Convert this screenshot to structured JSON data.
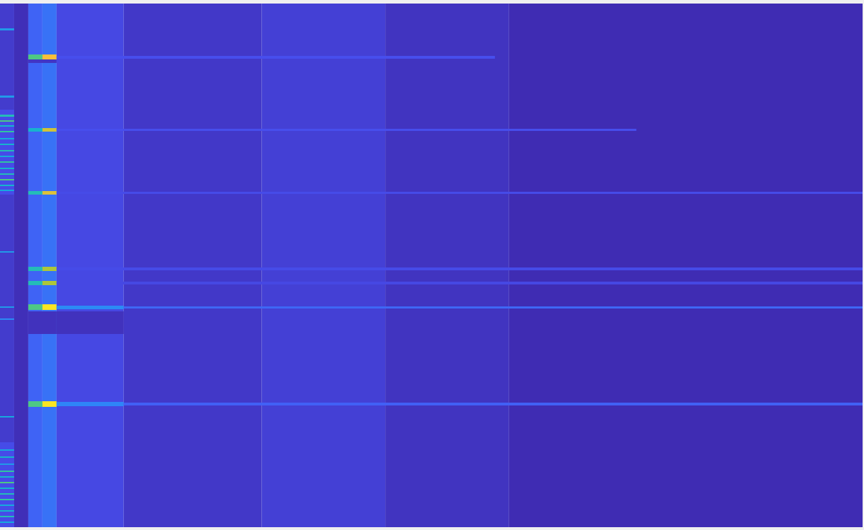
{
  "chart_data": {
    "type": "heatmap",
    "xlim": [
      0,
      1220
    ],
    "ylim": [
      0,
      740
    ],
    "tick_labels": false,
    "color_range": [
      0,
      1
    ],
    "cells": [
      [
        0,
        20,
        0,
        740,
        0.07
      ],
      [
        20,
        40,
        0,
        740,
        0.03
      ],
      [
        40,
        60,
        0,
        740,
        0.19
      ],
      [
        60,
        80,
        0,
        740,
        0.23
      ],
      [
        80,
        175,
        0,
        740,
        0.11
      ],
      [
        175,
        370,
        0,
        740,
        0.06
      ],
      [
        370,
        545,
        0,
        740,
        0.085
      ],
      [
        545,
        720,
        0,
        740,
        0.045
      ],
      [
        720,
        1220,
        0,
        740,
        0.02
      ],
      [
        0,
        20,
        150,
        270,
        0.12
      ],
      [
        0,
        20,
        620,
        740,
        0.12
      ],
      [
        40,
        80,
        435,
        467,
        0.04
      ],
      [
        80,
        175,
        435,
        467,
        0.04
      ],
      [
        40,
        80,
        79,
        84,
        0.05
      ],
      [
        40,
        60,
        72,
        79,
        0.6
      ],
      [
        60,
        80,
        72,
        79,
        0.85
      ],
      [
        80,
        700,
        74,
        78,
        0.13
      ],
      [
        40,
        60,
        176,
        181,
        0.45
      ],
      [
        60,
        80,
        176,
        181,
        0.78
      ],
      [
        80,
        900,
        177,
        180,
        0.13
      ],
      [
        40,
        60,
        265,
        270,
        0.5
      ],
      [
        60,
        80,
        265,
        270,
        0.8
      ],
      [
        80,
        1220,
        266,
        269,
        0.12
      ],
      [
        40,
        60,
        372,
        378,
        0.5
      ],
      [
        60,
        80,
        372,
        378,
        0.72
      ],
      [
        80,
        1220,
        373,
        377,
        0.12
      ],
      [
        40,
        60,
        392,
        398,
        0.5
      ],
      [
        60,
        80,
        392,
        398,
        0.72
      ],
      [
        80,
        1220,
        393,
        397,
        0.11
      ],
      [
        40,
        60,
        425,
        433,
        0.6
      ],
      [
        60,
        80,
        425,
        433,
        0.95
      ],
      [
        80,
        175,
        427,
        432,
        0.3
      ],
      [
        175,
        1220,
        428,
        431,
        0.2
      ],
      [
        40,
        60,
        562,
        570,
        0.6
      ],
      [
        60,
        80,
        562,
        570,
        0.95
      ],
      [
        80,
        175,
        563,
        569,
        0.28
      ],
      [
        175,
        1220,
        564,
        568,
        0.18
      ],
      [
        0,
        20,
        35,
        38,
        0.35
      ],
      [
        0,
        20,
        130,
        133,
        0.35
      ],
      [
        0,
        20,
        157,
        160,
        0.5
      ],
      [
        0,
        20,
        165,
        167,
        0.6
      ],
      [
        0,
        20,
        172,
        174,
        0.45
      ],
      [
        0,
        20,
        180,
        182,
        0.55
      ],
      [
        0,
        20,
        190,
        192,
        0.4
      ],
      [
        0,
        20,
        198,
        200,
        0.45
      ],
      [
        0,
        20,
        207,
        209,
        0.5
      ],
      [
        0,
        20,
        215,
        217,
        0.4
      ],
      [
        0,
        20,
        223,
        225,
        0.55
      ],
      [
        0,
        20,
        232,
        234,
        0.45
      ],
      [
        0,
        20,
        240,
        242,
        0.5
      ],
      [
        0,
        20,
        248,
        250,
        0.6
      ],
      [
        0,
        20,
        256,
        258,
        0.45
      ],
      [
        0,
        20,
        263,
        265,
        0.4
      ],
      [
        0,
        20,
        350,
        352,
        0.35
      ],
      [
        0,
        20,
        428,
        430,
        0.35
      ],
      [
        0,
        20,
        445,
        447,
        0.3
      ],
      [
        0,
        20,
        583,
        585,
        0.4
      ],
      [
        0,
        20,
        630,
        632,
        0.4
      ],
      [
        0,
        20,
        640,
        642,
        0.45
      ],
      [
        0,
        20,
        650,
        652,
        0.35
      ],
      [
        0,
        20,
        660,
        662,
        0.55
      ],
      [
        0,
        20,
        668,
        670,
        0.45
      ],
      [
        0,
        20,
        676,
        678,
        0.6
      ],
      [
        0,
        20,
        684,
        686,
        0.45
      ],
      [
        0,
        20,
        692,
        694,
        0.5
      ],
      [
        0,
        20,
        700,
        702,
        0.55
      ],
      [
        0,
        20,
        708,
        710,
        0.4
      ],
      [
        0,
        20,
        716,
        718,
        0.45
      ],
      [
        0,
        20,
        724,
        726,
        0.5
      ],
      [
        0,
        20,
        732,
        734,
        0.4
      ]
    ]
  }
}
